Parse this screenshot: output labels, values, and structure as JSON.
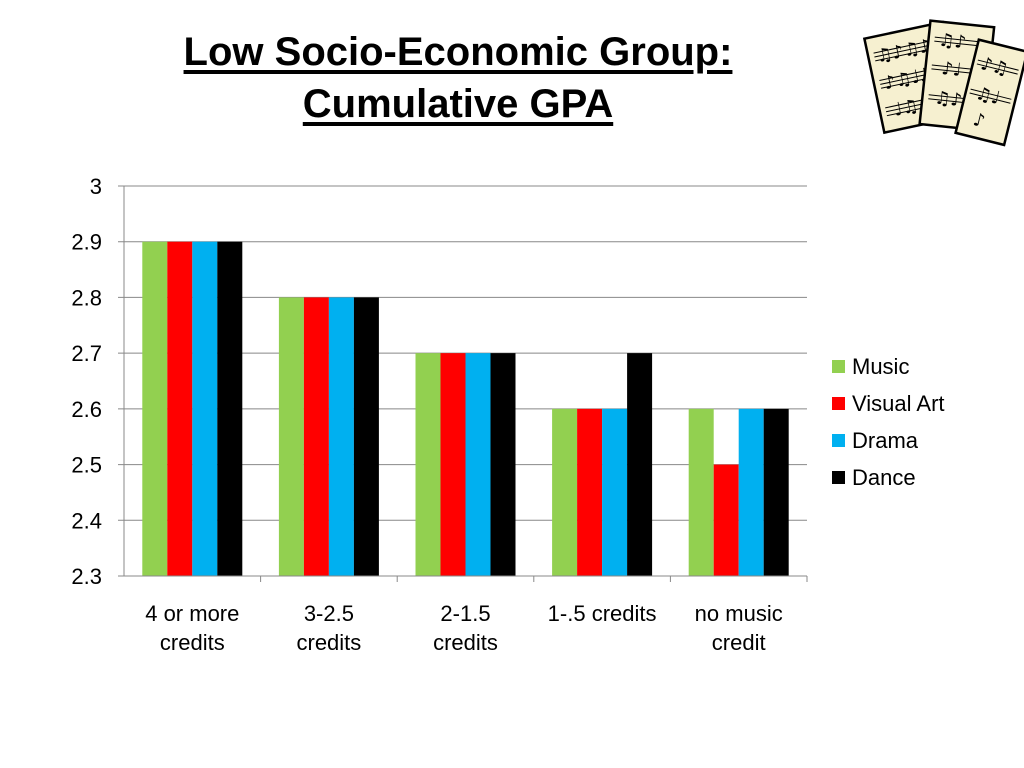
{
  "slide": {
    "title_line1": "Low Socio-Economic Group:",
    "title_line2": "Cumulative GPA",
    "clipart_icon": "sheet-music-icon"
  },
  "chart_data": {
    "type": "bar",
    "categories": [
      [
        "4 or more",
        "credits"
      ],
      [
        "3-2.5",
        "credits"
      ],
      [
        "2-1.5",
        "credits"
      ],
      [
        "1-.5 credits"
      ],
      [
        "no music",
        "credit"
      ]
    ],
    "series": [
      {
        "name": "Music",
        "color": "#92D050",
        "values": [
          2.9,
          2.8,
          2.7,
          2.6,
          2.6
        ]
      },
      {
        "name": "Visual Art",
        "color": "#FF0000",
        "values": [
          2.9,
          2.8,
          2.7,
          2.6,
          2.5
        ]
      },
      {
        "name": "Drama",
        "color": "#00B0F0",
        "values": [
          2.9,
          2.8,
          2.7,
          2.6,
          2.6
        ]
      },
      {
        "name": "Dance",
        "color": "#000000",
        "values": [
          2.9,
          2.8,
          2.7,
          2.7,
          2.6
        ]
      }
    ],
    "yticks": [
      "2.3",
      "2.4",
      "2.5",
      "2.6",
      "2.7",
      "2.8",
      "2.9",
      "3"
    ],
    "ylim": [
      2.3,
      3.0
    ],
    "grid": true,
    "legend_position": "right"
  }
}
